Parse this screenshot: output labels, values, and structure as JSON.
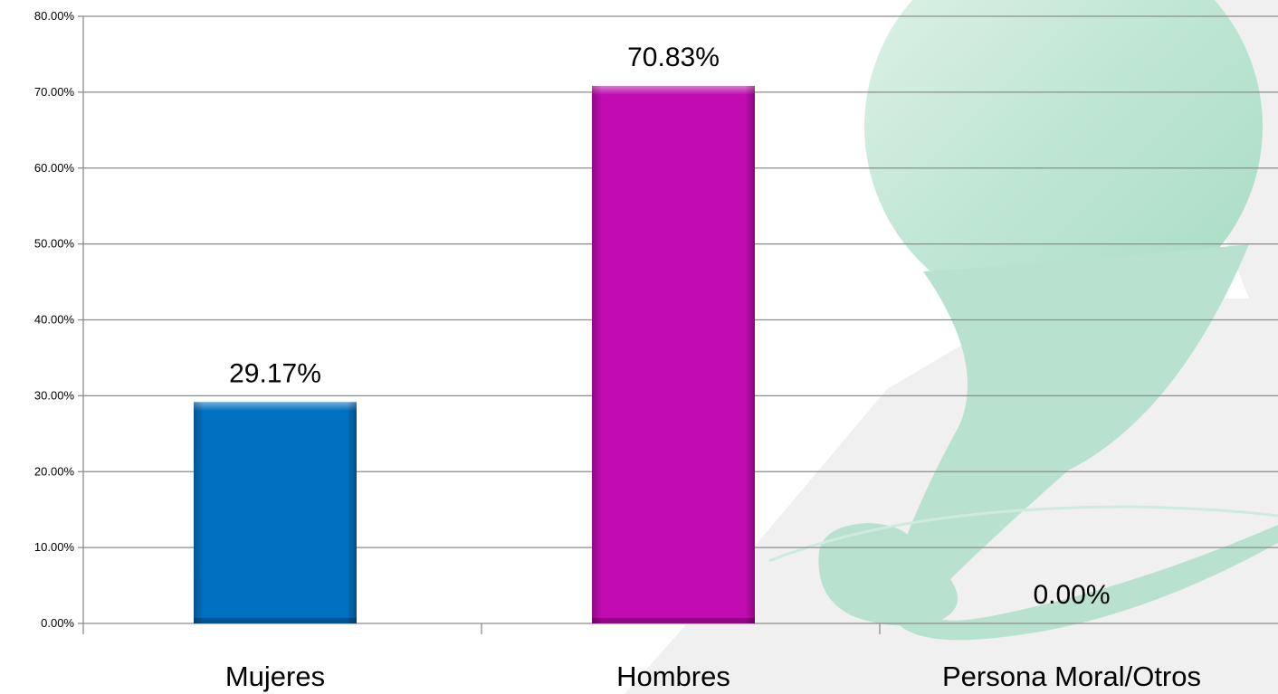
{
  "chart_data": {
    "type": "bar",
    "categories": [
      "Mujeres",
      "Hombres",
      "Persona Moral/Otros"
    ],
    "values": [
      29.17,
      70.83,
      0.0
    ],
    "data_labels": [
      "29.17%",
      "70.83%",
      "0.00%"
    ],
    "bar_colors": [
      "#0070C0",
      "#C00CB0",
      "#888888"
    ],
    "ylim": [
      0,
      80
    ],
    "y_ticks": [
      0,
      10,
      20,
      30,
      40,
      50,
      60,
      70,
      80
    ],
    "y_tick_labels": [
      "0.00%",
      "10.00%",
      "20.00%",
      "30.00%",
      "40.00%",
      "50.00%",
      "60.00%",
      "70.00%",
      "80.00%"
    ],
    "grid": true,
    "legend": "none",
    "title": "",
    "xlabel": "",
    "ylabel": ""
  },
  "colors": {
    "gridline": "#8c8c8c",
    "watermark": "#bfe6d4"
  }
}
